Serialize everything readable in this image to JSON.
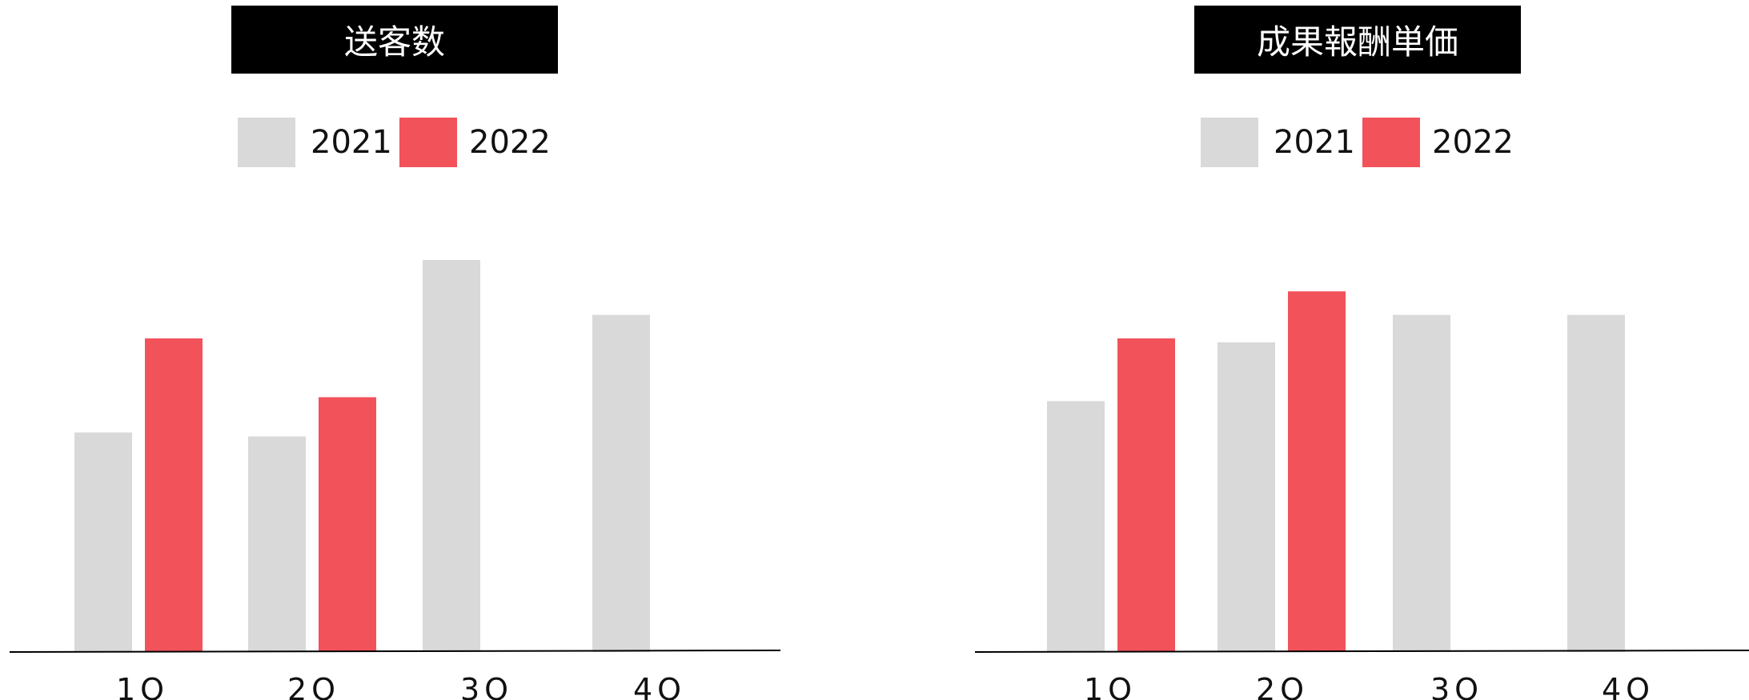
{
  "colors": {
    "series_2021": "#d9d9d9",
    "series_2022": "#f2525a",
    "title_bg": "#000000",
    "title_fg": "#ffffff"
  },
  "chart_data": [
    {
      "type": "bar",
      "title": "送客数",
      "categories": [
        "1Q",
        "2Q",
        "3Q",
        "4Q"
      ],
      "series": [
        {
          "name": "2021",
          "values": [
            56,
            55,
            100,
            86
          ]
        },
        {
          "name": "2022",
          "values": [
            80,
            65,
            null,
            null
          ]
        }
      ],
      "ylim": [
        0,
        100
      ],
      "grid": false,
      "legend": "top"
    },
    {
      "type": "bar",
      "title": "成果報酬単価",
      "categories": [
        "1Q",
        "2Q",
        "3Q",
        "4Q"
      ],
      "series": [
        {
          "name": "2021",
          "values": [
            64,
            79,
            86,
            86
          ]
        },
        {
          "name": "2022",
          "values": [
            80,
            92,
            null,
            null
          ]
        }
      ],
      "ylim": [
        0,
        100
      ],
      "grid": false,
      "legend": "top"
    }
  ]
}
